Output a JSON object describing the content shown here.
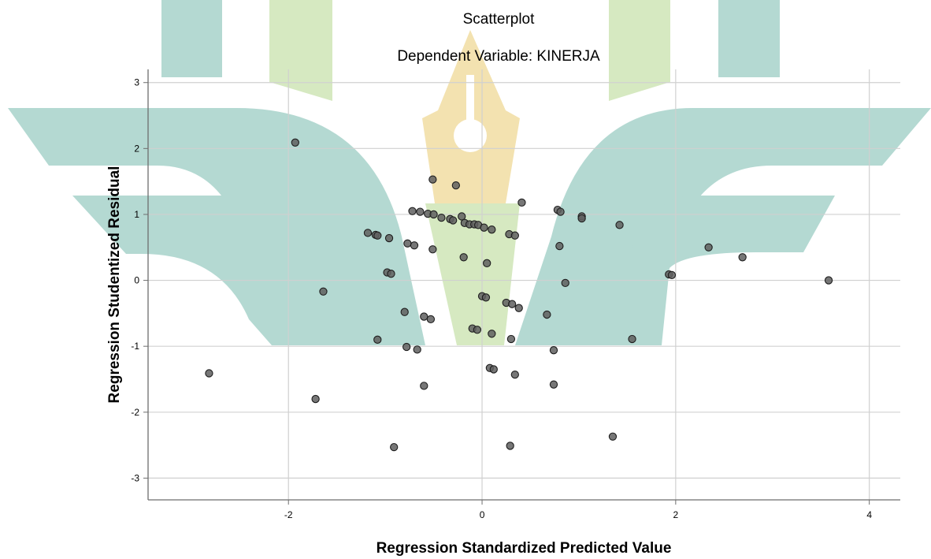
{
  "chart_data": {
    "type": "scatter",
    "title": "Scatterplot",
    "subtitle": "Dependent Variable: KINERJA",
    "xlabel": "Regression Standardized Predicted Value",
    "ylabel": "Regression Studentized Residual",
    "xlim": [
      -3.45,
      4.32
    ],
    "ylim": [
      -3.33,
      3.2
    ],
    "xticks": [
      -2,
      0,
      2,
      4
    ],
    "yticks": [
      3,
      2,
      1,
      0,
      -1,
      -2,
      -3
    ],
    "grid": true,
    "colors": {
      "point_fill": "#5f5f5f",
      "point_stroke": "#1e1e1e",
      "grid": "#d0d0d0",
      "axis": "#6e6e6e"
    },
    "points": [
      {
        "x": -1.93,
        "y": 2.09
      },
      {
        "x": -1.64,
        "y": -0.17
      },
      {
        "x": -2.82,
        "y": -1.41
      },
      {
        "x": -1.72,
        "y": -1.8
      },
      {
        "x": -1.18,
        "y": 0.72
      },
      {
        "x": -1.1,
        "y": 0.69
      },
      {
        "x": -1.08,
        "y": 0.68
      },
      {
        "x": -0.96,
        "y": 0.64
      },
      {
        "x": -0.98,
        "y": 0.12
      },
      {
        "x": -0.94,
        "y": 0.1
      },
      {
        "x": -1.08,
        "y": -0.9
      },
      {
        "x": -0.91,
        "y": -2.53
      },
      {
        "x": -0.77,
        "y": 0.56
      },
      {
        "x": -0.7,
        "y": 0.53
      },
      {
        "x": -0.8,
        "y": -0.48
      },
      {
        "x": -0.6,
        "y": -0.55
      },
      {
        "x": -0.53,
        "y": -0.59
      },
      {
        "x": -0.78,
        "y": -1.01
      },
      {
        "x": -0.67,
        "y": -1.05
      },
      {
        "x": -0.6,
        "y": -1.6
      },
      {
        "x": -0.72,
        "y": 1.05
      },
      {
        "x": -0.64,
        "y": 1.04
      },
      {
        "x": -0.56,
        "y": 1.01
      },
      {
        "x": -0.5,
        "y": 1.0
      },
      {
        "x": -0.42,
        "y": 0.95
      },
      {
        "x": -0.33,
        "y": 0.93
      },
      {
        "x": -0.3,
        "y": 0.91
      },
      {
        "x": -0.21,
        "y": 0.97
      },
      {
        "x": -0.18,
        "y": 0.87
      },
      {
        "x": -0.13,
        "y": 0.85
      },
      {
        "x": -0.08,
        "y": 0.85
      },
      {
        "x": -0.04,
        "y": 0.84
      },
      {
        "x": 0.02,
        "y": 0.8
      },
      {
        "x": 0.1,
        "y": 0.77
      },
      {
        "x": 0.28,
        "y": 0.7
      },
      {
        "x": 0.34,
        "y": 0.68
      },
      {
        "x": -0.51,
        "y": 1.53
      },
      {
        "x": -0.27,
        "y": 1.44
      },
      {
        "x": 0.41,
        "y": 1.18
      },
      {
        "x": -0.51,
        "y": 0.47
      },
      {
        "x": -0.19,
        "y": 0.35
      },
      {
        "x": 0.05,
        "y": 0.26
      },
      {
        "x": 0.0,
        "y": -0.24
      },
      {
        "x": 0.04,
        "y": -0.26
      },
      {
        "x": -0.1,
        "y": -0.73
      },
      {
        "x": -0.05,
        "y": -0.75
      },
      {
        "x": 0.1,
        "y": -0.81
      },
      {
        "x": 0.08,
        "y": -1.33
      },
      {
        "x": 0.12,
        "y": -1.35
      },
      {
        "x": 0.34,
        "y": -1.43
      },
      {
        "x": 0.3,
        "y": -0.89
      },
      {
        "x": 0.25,
        "y": -0.34
      },
      {
        "x": 0.31,
        "y": -0.36
      },
      {
        "x": 0.38,
        "y": -0.42
      },
      {
        "x": 0.29,
        "y": -2.51
      },
      {
        "x": 0.78,
        "y": 1.07
      },
      {
        "x": 0.81,
        "y": 1.04
      },
      {
        "x": 1.03,
        "y": 0.97
      },
      {
        "x": 1.03,
        "y": 0.94
      },
      {
        "x": 0.8,
        "y": 0.52
      },
      {
        "x": 0.86,
        "y": -0.04
      },
      {
        "x": 0.67,
        "y": -0.52
      },
      {
        "x": 0.74,
        "y": -1.06
      },
      {
        "x": 0.74,
        "y": -1.58
      },
      {
        "x": 1.42,
        "y": 0.84
      },
      {
        "x": 1.35,
        "y": -2.37
      },
      {
        "x": 1.55,
        "y": -0.89
      },
      {
        "x": 1.93,
        "y": 0.09
      },
      {
        "x": 1.96,
        "y": 0.08
      },
      {
        "x": 2.34,
        "y": 0.5
      },
      {
        "x": 2.69,
        "y": 0.35
      },
      {
        "x": 3.58,
        "y": 0.0
      }
    ]
  }
}
